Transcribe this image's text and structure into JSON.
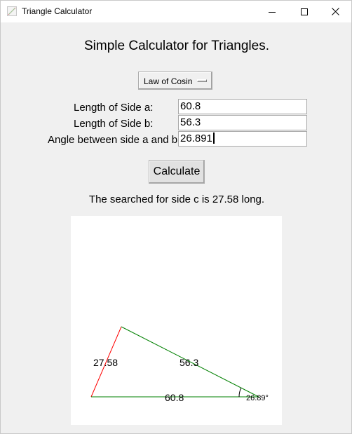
{
  "window": {
    "title": "Triangle Calculator"
  },
  "main": {
    "heading": "Simple Calculator for Triangles.",
    "mode_selector": {
      "selected": "Law of Cosin"
    },
    "fields": [
      {
        "label": "Length of Side a:",
        "value": "60.8"
      },
      {
        "label": "Length of Side b:",
        "value": "56.3"
      },
      {
        "label": "Angle between side a and b:",
        "value": "26.891"
      }
    ],
    "calculate_label": "Calculate",
    "result_text": "The searched for side c is 27.58 long."
  },
  "drawing": {
    "side_a_label": "60.8",
    "side_b_label": "56.3",
    "side_c_label": "27.58",
    "angle_label": "26.89°",
    "colors": {
      "side_c": "#ff0000",
      "sides_ab": "#008000"
    }
  }
}
